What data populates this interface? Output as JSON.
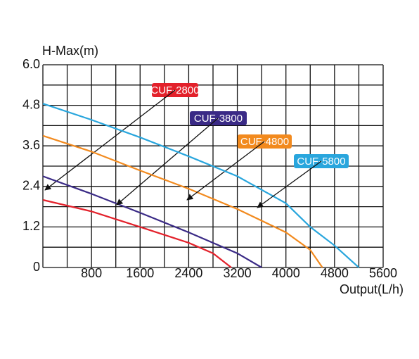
{
  "chart_data": {
    "type": "line",
    "y_label": "H-Max(m)",
    "x_label": "Output(L/h)",
    "xlim": [
      0,
      5600
    ],
    "ylim": [
      0,
      6
    ],
    "xticks": [
      800,
      1600,
      2400,
      3200,
      4000,
      4800,
      5600
    ],
    "yticks": [
      0,
      1.2,
      2.4,
      3.6,
      4.8,
      {
        "value": 6,
        "label": "6.0"
      }
    ],
    "xgrid": [
      0,
      400,
      800,
      1200,
      1600,
      2000,
      2400,
      2800,
      3200,
      3600,
      4000,
      4400,
      4800,
      5200,
      5600
    ],
    "ygrid": [
      0,
      0.6,
      1.2,
      1.8,
      2.4,
      3,
      3.6,
      4.2,
      4.8,
      5.4,
      6
    ],
    "grid": true,
    "series": [
      {
        "name": "CUF-2800",
        "color": "#e3212b",
        "x": [
          0,
          800,
          1600,
          2400,
          2800,
          3100
        ],
        "values": [
          2.0,
          1.66,
          1.2,
          0.73,
          0.42,
          0
        ]
      },
      {
        "name": "CUF-3800",
        "color": "#3a2a86",
        "x": [
          0,
          800,
          1600,
          2400,
          3200,
          3600
        ],
        "values": [
          2.7,
          2.18,
          1.62,
          1.04,
          0.42,
          0
        ]
      },
      {
        "name": "CUF-4800",
        "color": "#f28a1e",
        "x": [
          0,
          800,
          1600,
          2400,
          3200,
          4000,
          4400,
          4600
        ],
        "values": [
          3.9,
          3.43,
          2.87,
          2.33,
          1.73,
          1.04,
          0.52,
          0
        ]
      },
      {
        "name": "CUF-5800",
        "color": "#29a6dd",
        "x": [
          0,
          800,
          1600,
          2400,
          3200,
          4000,
          4400,
          4800,
          5200
        ],
        "values": [
          4.85,
          4.37,
          3.85,
          3.29,
          2.7,
          1.9,
          1.2,
          0.65,
          0
        ]
      }
    ]
  }
}
